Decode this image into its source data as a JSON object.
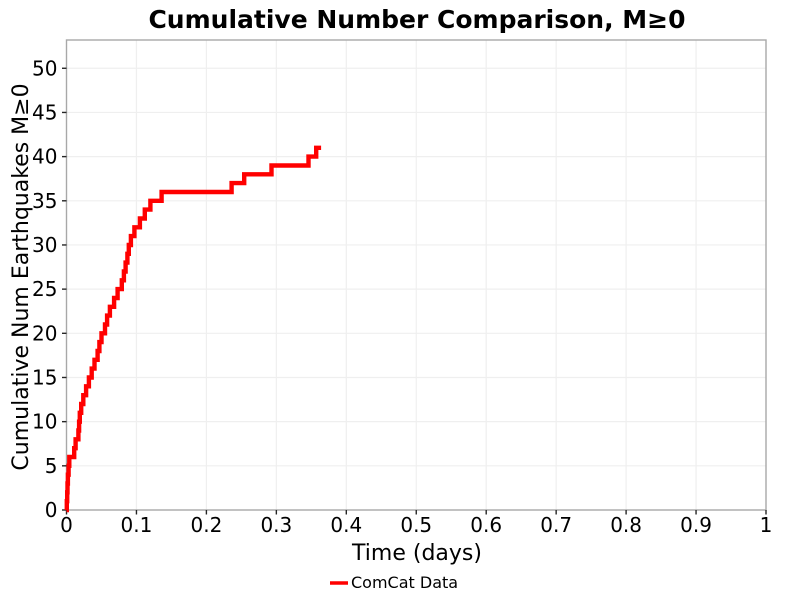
{
  "figure": {
    "background": "#ffffff"
  },
  "colors": {
    "series_red": "#ff0000",
    "spine_gray": "#a8a8a8",
    "grid_gray": "#efefef",
    "tick_gray": "#262626",
    "text_black": "#000000"
  },
  "chart_data": {
    "type": "line",
    "subtype": "cumulative-step",
    "title": "Cumulative Number Comparison, M≥0",
    "xlabel": "Time (days)",
    "ylabel": "Cumulative Num Earthquakes M≥0",
    "xlim": [
      0,
      1
    ],
    "ylim": [
      0,
      53.2
    ],
    "grid": true,
    "xticks": [
      0,
      0.1,
      0.2,
      0.3,
      0.4,
      0.5,
      0.6,
      0.7,
      0.8,
      0.9,
      1
    ],
    "xtick_labels": [
      "0",
      "0.1",
      "0.2",
      "0.3",
      "0.4",
      "0.5",
      "0.6",
      "0.7",
      "0.8",
      "0.9",
      "1"
    ],
    "yticks": [
      0,
      5,
      10,
      15,
      20,
      25,
      30,
      35,
      40,
      45,
      50
    ],
    "ytick_labels": [
      "0",
      "5",
      "10",
      "15",
      "20",
      "25",
      "30",
      "35",
      "40",
      "45",
      "50"
    ],
    "legend": {
      "position": "bottom-center",
      "entries": [
        {
          "label": "ComCat Data",
          "color": "#ff0000"
        }
      ]
    },
    "series": [
      {
        "name": "ComCat Data",
        "color": "#ff0000",
        "line_width": 4.4,
        "step": "post",
        "x_start": 0,
        "y_start": 0,
        "x": [
          0.0005,
          0.001,
          0.0015,
          0.002,
          0.003,
          0.004,
          0.011,
          0.013,
          0.017,
          0.018,
          0.019,
          0.021,
          0.024,
          0.028,
          0.032,
          0.036,
          0.04,
          0.0445,
          0.047,
          0.05,
          0.055,
          0.058,
          0.062,
          0.068,
          0.073,
          0.079,
          0.082,
          0.0845,
          0.087,
          0.089,
          0.092,
          0.097,
          0.105,
          0.112,
          0.12,
          0.136,
          0.236,
          0.254,
          0.293,
          0.346,
          0.357
        ],
        "y": [
          1,
          2,
          3,
          4,
          5,
          6,
          7,
          8,
          9,
          10,
          11,
          12,
          13,
          14,
          15,
          16,
          17,
          18,
          19,
          20,
          21,
          22,
          23,
          24,
          25,
          26,
          27,
          28,
          29,
          30,
          31,
          32,
          33,
          34,
          35,
          36,
          37,
          38,
          39,
          40,
          41
        ],
        "x_end": 0.364
      }
    ]
  }
}
